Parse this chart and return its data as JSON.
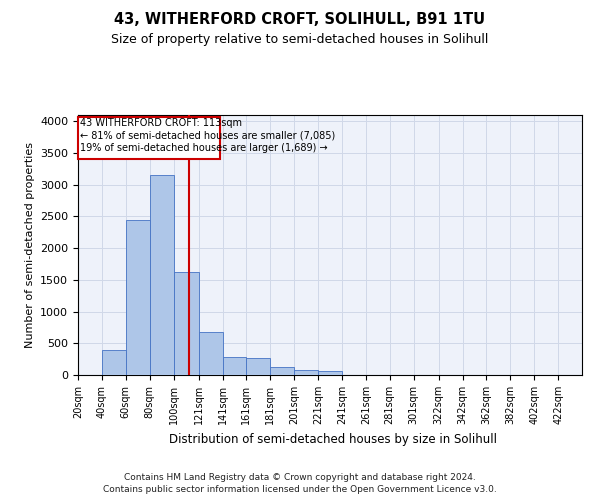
{
  "title1": "43, WITHERFORD CROFT, SOLIHULL, B91 1TU",
  "title2": "Size of property relative to semi-detached houses in Solihull",
  "xlabel": "Distribution of semi-detached houses by size in Solihull",
  "ylabel": "Number of semi-detached properties",
  "footnote1": "Contains HM Land Registry data © Crown copyright and database right 2024.",
  "footnote2": "Contains public sector information licensed under the Open Government Licence v3.0.",
  "annotation_line1": "43 WITHERFORD CROFT: 113sqm",
  "annotation_line2": "← 81% of semi-detached houses are smaller (7,085)",
  "annotation_line3": "19% of semi-detached houses are larger (1,689) →",
  "property_size": 113,
  "bar_color": "#aec6e8",
  "bar_edge_color": "#4472c4",
  "vline_color": "#cc0000",
  "grid_color": "#d0d8e8",
  "bg_color": "#eef2fa",
  "categories": [
    "20sqm",
    "40sqm",
    "60sqm",
    "80sqm",
    "100sqm",
    "121sqm",
    "141sqm",
    "161sqm",
    "181sqm",
    "201sqm",
    "221sqm",
    "241sqm",
    "261sqm",
    "281sqm",
    "301sqm",
    "322sqm",
    "342sqm",
    "362sqm",
    "382sqm",
    "402sqm",
    "422sqm"
  ],
  "bin_edges": [
    20,
    40,
    60,
    80,
    100,
    121,
    141,
    161,
    181,
    201,
    221,
    241,
    261,
    281,
    301,
    322,
    342,
    362,
    382,
    402,
    422,
    442
  ],
  "values": [
    5,
    400,
    2450,
    3150,
    1620,
    675,
    280,
    275,
    120,
    75,
    70,
    0,
    0,
    0,
    0,
    0,
    0,
    0,
    0,
    0,
    0
  ],
  "ylim": [
    0,
    4100
  ],
  "yticks": [
    0,
    500,
    1000,
    1500,
    2000,
    2500,
    3000,
    3500,
    4000
  ]
}
